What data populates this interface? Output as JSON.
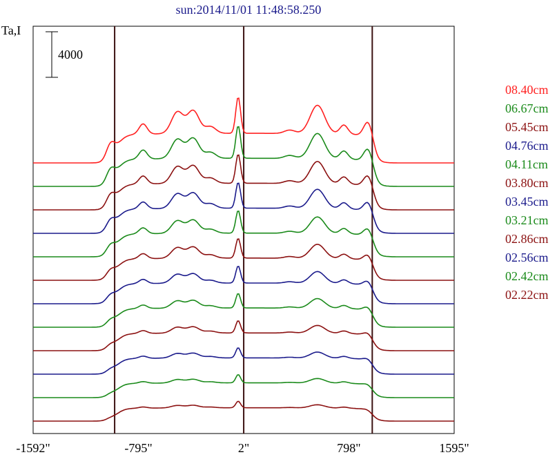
{
  "chart_data": {
    "type": "line",
    "title": "sun:2014/11/01 11:48:58.250",
    "ylabel": "Ta,I",
    "scale_bar_label": "4000",
    "scale_bar_value": 4000,
    "x_ticks": [
      {
        "value": -1592,
        "label": "-1592\""
      },
      {
        "value": -795,
        "label": "-795\""
      },
      {
        "value": 2,
        "label": "2\""
      },
      {
        "value": 798,
        "label": "798\""
      },
      {
        "value": 1595,
        "label": "1595\""
      }
    ],
    "xlim": [
      -1592,
      1595
    ],
    "vertical_lines": [
      -975,
      2,
      975
    ],
    "series": [
      {
        "name": "08.40cm",
        "color": "#ff2020"
      },
      {
        "name": "06.67cm",
        "color": "#1a8a1a"
      },
      {
        "name": "05.45cm",
        "color": "#8b1010"
      },
      {
        "name": "04.76cm",
        "color": "#1a1a8b"
      },
      {
        "name": "04.11cm",
        "color": "#1a8a1a"
      },
      {
        "name": "03.80cm",
        "color": "#8b1010"
      },
      {
        "name": "03.45cm",
        "color": "#1a1a8b"
      },
      {
        "name": "03.21cm",
        "color": "#1a8a1a"
      },
      {
        "name": "02.86cm",
        "color": "#8b1010"
      },
      {
        "name": "02.56cm",
        "color": "#1a1a8b"
      },
      {
        "name": "02.42cm",
        "color": "#1a8a1a"
      },
      {
        "name": "02.22cm",
        "color": "#8b1010"
      }
    ]
  }
}
